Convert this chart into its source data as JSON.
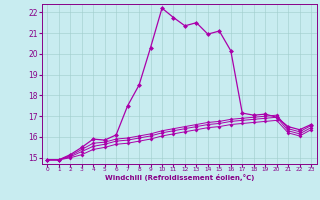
{
  "xlabel": "Windchill (Refroidissement éolien,°C)",
  "bg_color": "#c8ecf0",
  "line_color": "#aa00aa",
  "grid_color": "#a0cccc",
  "text_color": "#880088",
  "xlim": [
    -0.5,
    23.5
  ],
  "ylim": [
    14.7,
    22.4
  ],
  "xticks": [
    0,
    1,
    2,
    3,
    4,
    5,
    6,
    7,
    8,
    9,
    10,
    11,
    12,
    13,
    14,
    15,
    16,
    17,
    18,
    19,
    20,
    21,
    22,
    23
  ],
  "yticks": [
    15,
    16,
    17,
    18,
    19,
    20,
    21,
    22
  ],
  "lines": [
    {
      "x": [
        0,
        1,
        2,
        3,
        4,
        5,
        6,
        7,
        8,
        9,
        10,
        11,
        12,
        13,
        14,
        15,
        16,
        17,
        18,
        19,
        20,
        21,
        22,
        23
      ],
      "y": [
        14.9,
        14.9,
        15.15,
        15.5,
        15.9,
        15.85,
        16.1,
        17.5,
        18.5,
        20.3,
        22.2,
        21.75,
        21.35,
        21.5,
        20.95,
        21.1,
        20.15,
        17.15,
        17.05,
        17.1,
        16.95,
        16.5,
        16.35,
        16.6
      ]
    },
    {
      "x": [
        0,
        1,
        2,
        3,
        4,
        5,
        6,
        7,
        8,
        9,
        10,
        11,
        12,
        13,
        14,
        15,
        16,
        17,
        18,
        19,
        20,
        21,
        22,
        23
      ],
      "y": [
        14.9,
        14.9,
        15.1,
        15.4,
        15.7,
        15.75,
        15.9,
        15.95,
        16.05,
        16.15,
        16.3,
        16.4,
        16.5,
        16.6,
        16.7,
        16.75,
        16.85,
        16.9,
        16.95,
        17.0,
        17.05,
        16.4,
        16.25,
        16.55
      ]
    },
    {
      "x": [
        0,
        1,
        2,
        3,
        4,
        5,
        6,
        7,
        8,
        9,
        10,
        11,
        12,
        13,
        14,
        15,
        16,
        17,
        18,
        19,
        20,
        21,
        22,
        23
      ],
      "y": [
        14.9,
        14.9,
        15.05,
        15.3,
        15.55,
        15.65,
        15.8,
        15.85,
        15.95,
        16.05,
        16.2,
        16.3,
        16.4,
        16.5,
        16.6,
        16.65,
        16.75,
        16.8,
        16.85,
        16.9,
        16.95,
        16.3,
        16.15,
        16.45
      ]
    },
    {
      "x": [
        0,
        1,
        2,
        3,
        4,
        5,
        6,
        7,
        8,
        9,
        10,
        11,
        12,
        13,
        14,
        15,
        16,
        17,
        18,
        19,
        20,
        21,
        22,
        23
      ],
      "y": [
        14.9,
        14.9,
        15.0,
        15.15,
        15.4,
        15.5,
        15.65,
        15.7,
        15.8,
        15.9,
        16.05,
        16.15,
        16.25,
        16.35,
        16.45,
        16.5,
        16.6,
        16.65,
        16.7,
        16.75,
        16.8,
        16.2,
        16.05,
        16.35
      ]
    }
  ]
}
